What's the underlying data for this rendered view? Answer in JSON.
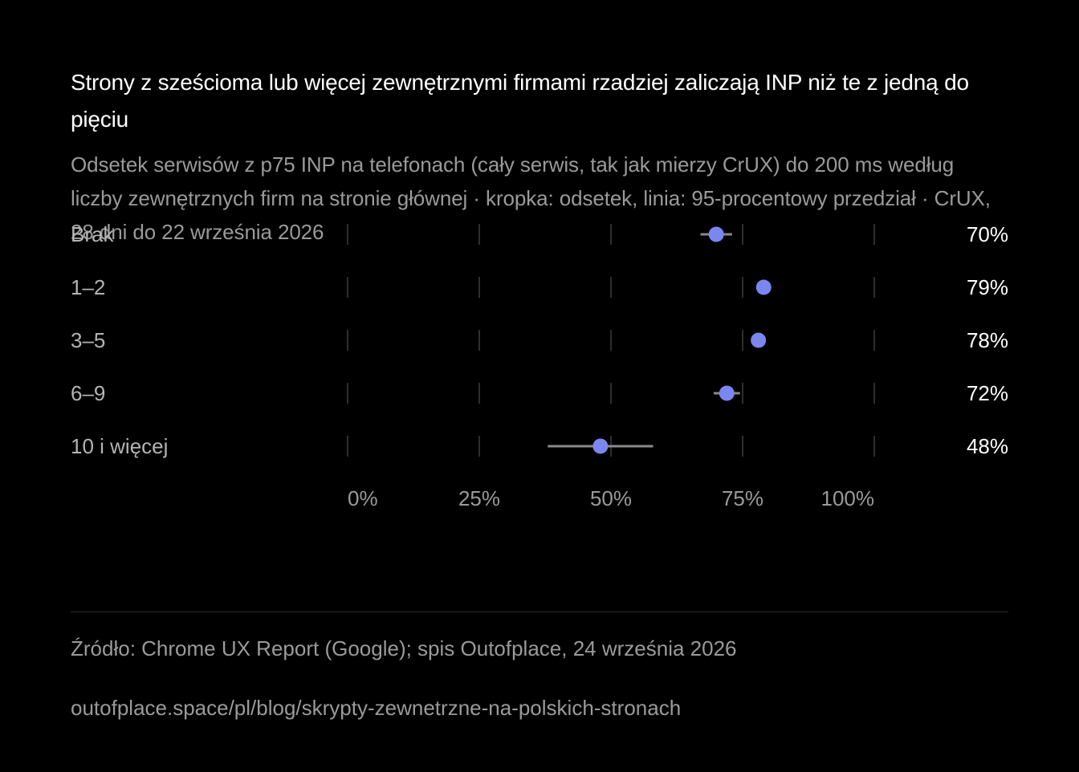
{
  "title": "Strony z sześcioma lub więcej zewnętrznymi firmami rzadziej zaliczają INP niż te z jedną do pięciu",
  "subtitle": "Odsetek serwisów z p75 INP na telefonach (cały serwis, tak jak mierzy CrUX) do 200 ms według liczby zewnętrznych firm na stronie głównej · kropka: odsetek, linia: 95-procentowy przedział · CrUX, 28 dni do 22 września 2026",
  "chart_data": {
    "type": "scatter",
    "orientation": "horizontal",
    "categories": [
      "Brak",
      "1–2",
      "3–5",
      "6–9",
      "10 i więcej"
    ],
    "values": [
      70,
      79,
      78,
      72,
      48
    ],
    "value_labels": [
      "70%",
      "79%",
      "78%",
      "72%",
      "48%"
    ],
    "ci_low": [
      67,
      78.5,
      77.5,
      69.5,
      38
    ],
    "ci_high": [
      73,
      79.5,
      78.5,
      74.5,
      58
    ],
    "xlim": [
      0,
      100
    ],
    "ticks": [
      0,
      25,
      50,
      75,
      100
    ],
    "tick_labels": [
      "0%",
      "25%",
      "50%",
      "75%",
      "100%"
    ],
    "grid": true,
    "colors": {
      "point": "#7b86f0",
      "interval": "#8a8a8a",
      "grid": "#2e2e2e",
      "category_label": "#b4b4b4",
      "value_label": "#ffffff",
      "tick_label": "#9a9a9a"
    }
  },
  "footer": {
    "source": "Źródło: Chrome UX Report (Google); spis Outofplace, 24 września 2026",
    "url": "outofplace.space/pl/blog/skrypty-zewnetrzne-na-polskich-stronach"
  }
}
